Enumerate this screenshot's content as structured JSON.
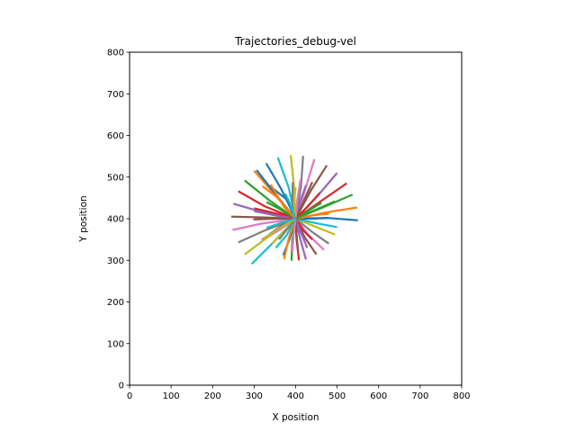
{
  "chart_data": {
    "type": "line",
    "title": "Trajectories_debug-vel",
    "xlabel": "X position",
    "ylabel": "Y position",
    "xlim": [
      0,
      800
    ],
    "ylim": [
      0,
      800
    ],
    "xticks": [
      "0",
      "100",
      "200",
      "300",
      "400",
      "500",
      "600",
      "700",
      "800"
    ],
    "yticks": [
      "0",
      "100",
      "200",
      "300",
      "400",
      "500",
      "600",
      "700",
      "800"
    ],
    "grid": false,
    "legend": "none",
    "palette": [
      "#1f77b4",
      "#ff7f0e",
      "#2ca02c",
      "#d62728",
      "#9467bd",
      "#8c564b",
      "#e377c2",
      "#7f7f7f",
      "#bcbd22",
      "#17becf"
    ],
    "series": [
      {
        "color": "#1f77b4",
        "x": [
          400,
          475,
          550
        ],
        "y": [
          400,
          402,
          396
        ]
      },
      {
        "color": "#ff7f0e",
        "x": [
          400,
          473,
          548
        ],
        "y": [
          400,
          415,
          427
        ]
      },
      {
        "color": "#2ca02c",
        "x": [
          400,
          468,
          537
        ],
        "y": [
          400,
          428,
          458
        ]
      },
      {
        "color": "#d62728",
        "x": [
          400,
          462,
          523
        ],
        "y": [
          400,
          443,
          485
        ]
      },
      {
        "color": "#9467bd",
        "x": [
          400,
          453,
          500
        ],
        "y": [
          400,
          455,
          510
        ]
      },
      {
        "color": "#8c564b",
        "x": [
          400,
          438,
          475
        ],
        "y": [
          400,
          470,
          528
        ]
      },
      {
        "color": "#e377c2",
        "x": [
          400,
          423,
          445
        ],
        "y": [
          400,
          470,
          543
        ]
      },
      {
        "color": "#7f7f7f",
        "x": [
          400,
          413,
          418
        ],
        "y": [
          400,
          478,
          551
        ]
      },
      {
        "color": "#bcbd22",
        "x": [
          400,
          396,
          388
        ],
        "y": [
          400,
          478,
          553
        ]
      },
      {
        "color": "#17becf",
        "x": [
          400,
          383,
          357
        ],
        "y": [
          400,
          475,
          547
        ]
      },
      {
        "color": "#1f77b4",
        "x": [
          400,
          366,
          329
        ],
        "y": [
          400,
          470,
          533
        ]
      },
      {
        "color": "#ff7f0e",
        "x": [
          400,
          350,
          300
        ],
        "y": [
          400,
          458,
          515
        ]
      },
      {
        "color": "#2ca02c",
        "x": [
          400,
          337,
          277
        ],
        "y": [
          400,
          444,
          492
        ]
      },
      {
        "color": "#d62728",
        "x": [
          400,
          325,
          262
        ],
        "y": [
          400,
          430,
          466
        ]
      },
      {
        "color": "#9467bd",
        "x": [
          400,
          315,
          250
        ],
        "y": [
          400,
          417,
          436
        ]
      },
      {
        "color": "#8c564b",
        "x": [
          400,
          325,
          245
        ],
        "y": [
          400,
          403,
          405
        ]
      },
      {
        "color": "#e377c2",
        "x": [
          400,
          316,
          248
        ],
        "y": [
          400,
          388,
          373
        ]
      },
      {
        "color": "#7f7f7f",
        "x": [
          400,
          324,
          262
        ],
        "y": [
          400,
          371,
          343
        ]
      },
      {
        "color": "#bcbd22",
        "x": [
          400,
          332,
          277
        ],
        "y": [
          400,
          355,
          314
        ]
      },
      {
        "color": "#17becf",
        "x": [
          400,
          343,
          294
        ],
        "y": [
          400,
          340,
          291
        ]
      },
      {
        "color": "#1f77b4",
        "x": [
          400,
          385,
          370
        ],
        "y": [
          400,
          350,
          312
        ]
      },
      {
        "color": "#ff7f0e",
        "x": [
          400,
          384,
          372
        ],
        "y": [
          400,
          355,
          303
        ]
      },
      {
        "color": "#2ca02c",
        "x": [
          400,
          392,
          390
        ],
        "y": [
          400,
          350,
          299
        ]
      },
      {
        "color": "#d62728",
        "x": [
          400,
          402,
          408
        ],
        "y": [
          400,
          352,
          300
        ]
      },
      {
        "color": "#9467bd",
        "x": [
          400,
          410,
          425
        ],
        "y": [
          400,
          355,
          302
        ]
      },
      {
        "color": "#8c564b",
        "x": [
          400,
          422,
          450
        ],
        "y": [
          400,
          355,
          314
        ]
      },
      {
        "color": "#e377c2",
        "x": [
          400,
          432,
          468
        ],
        "y": [
          400,
          360,
          325
        ]
      },
      {
        "color": "#7f7f7f",
        "x": [
          400,
          440,
          480
        ],
        "y": [
          400,
          368,
          340
        ]
      },
      {
        "color": "#bcbd22",
        "x": [
          400,
          450,
          495
        ],
        "y": [
          400,
          380,
          362
        ]
      },
      {
        "color": "#17becf",
        "x": [
          400,
          455,
          500
        ],
        "y": [
          400,
          388,
          380
        ]
      },
      {
        "color": "#1f77b4",
        "x": [
          400,
          352,
          306
        ],
        "y": [
          400,
          458,
          517
        ]
      },
      {
        "color": "#ff7f0e",
        "x": [
          400,
          355,
          320
        ],
        "y": [
          400,
          452,
          478
        ]
      },
      {
        "color": "#2ca02c",
        "x": [
          400,
          362,
          330
        ],
        "y": [
          400,
          423,
          440
        ]
      },
      {
        "color": "#d62728",
        "x": [
          400,
          355,
          300
        ],
        "y": [
          400,
          412,
          425
        ]
      },
      {
        "color": "#9467bd",
        "x": [
          400,
          350,
          300
        ],
        "y": [
          400,
          408,
          418
        ]
      },
      {
        "color": "#8c564b",
        "x": [
          400,
          350,
          298
        ],
        "y": [
          400,
          400,
          398
        ]
      },
      {
        "color": "#e377c2",
        "x": [
          400,
          360,
          318
        ],
        "y": [
          400,
          372,
          350
        ]
      },
      {
        "color": "#7f7f7f",
        "x": [
          400,
          365,
          336
        ],
        "y": [
          400,
          383,
          362
        ]
      },
      {
        "color": "#bcbd22",
        "x": [
          400,
          370,
          343
        ],
        "y": [
          400,
          367,
          340
        ]
      },
      {
        "color": "#17becf",
        "x": [
          400,
          378,
          352
        ],
        "y": [
          400,
          360,
          330
        ]
      },
      {
        "color": "#1f77b4",
        "x": [
          400,
          380,
          342
        ],
        "y": [
          400,
          445,
          475
        ]
      },
      {
        "color": "#ff7f0e",
        "x": [
          400,
          372,
          340
        ],
        "y": [
          400,
          428,
          482
        ]
      },
      {
        "color": "#2ca02c",
        "x": [
          400,
          432,
          462
        ],
        "y": [
          400,
          420,
          438
        ]
      },
      {
        "color": "#d62728",
        "x": [
          400,
          430,
          458
        ],
        "y": [
          400,
          430,
          462
        ]
      },
      {
        "color": "#9467bd",
        "x": [
          400,
          410,
          425
        ],
        "y": [
          400,
          440,
          480
        ]
      },
      {
        "color": "#8c564b",
        "x": [
          400,
          418,
          440
        ],
        "y": [
          400,
          440,
          488
        ]
      },
      {
        "color": "#e377c2",
        "x": [
          400,
          404,
          412
        ],
        "y": [
          400,
          445,
          495
        ]
      },
      {
        "color": "#7f7f7f",
        "x": [
          400,
          392,
          393
        ],
        "y": [
          400,
          445,
          488
        ]
      },
      {
        "color": "#bcbd22",
        "x": [
          400,
          396,
          400
        ],
        "y": [
          400,
          440,
          475
        ]
      },
      {
        "color": "#17becf",
        "x": [
          400,
          385,
          375
        ],
        "y": [
          400,
          440,
          460
        ]
      },
      {
        "color": "#1f77b4",
        "x": [
          400,
          440,
          480
        ],
        "y": [
          400,
          400,
          402
        ]
      },
      {
        "color": "#ff7f0e",
        "x": [
          400,
          440,
          480
        ],
        "y": [
          400,
          408,
          412
        ]
      },
      {
        "color": "#2ca02c",
        "x": [
          400,
          445,
          495
        ],
        "y": [
          400,
          420,
          442
        ]
      },
      {
        "color": "#d62728",
        "x": [
          400,
          420,
          440
        ],
        "y": [
          400,
          370,
          350
        ]
      },
      {
        "color": "#9467bd",
        "x": [
          400,
          412,
          428
        ],
        "y": [
          400,
          368,
          330
        ]
      },
      {
        "color": "#8c564b",
        "x": [
          400,
          402,
          406
        ],
        "y": [
          400,
          365,
          320
        ]
      },
      {
        "color": "#e377c2",
        "x": [
          400,
          395,
          392
        ],
        "y": [
          400,
          360,
          320
        ]
      },
      {
        "color": "#7f7f7f",
        "x": [
          400,
          380,
          360
        ],
        "y": [
          400,
          375,
          350
        ]
      },
      {
        "color": "#bcbd22",
        "x": [
          400,
          360,
          322
        ],
        "y": [
          400,
          376,
          352
        ]
      },
      {
        "color": "#17becf",
        "x": [
          400,
          365,
          330
        ],
        "y": [
          400,
          390,
          378
        ]
      }
    ]
  }
}
